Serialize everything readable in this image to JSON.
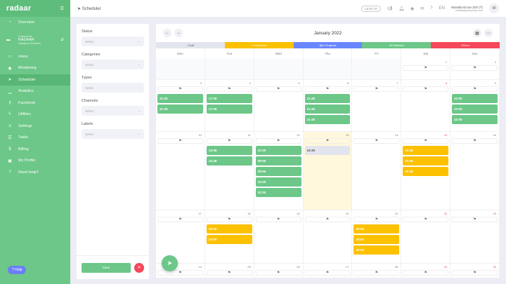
{
  "sidebar": {
    "brand": "radaar",
    "workspace": {
      "label": "Professional",
      "name": "RADAAR",
      "sub": "Instagram Scheduler"
    },
    "items": [
      {
        "label": "Overview",
        "icon": "dashboard-icon",
        "glyph": "◔"
      },
      {
        "label": "Inbox",
        "icon": "inbox-icon",
        "glyph": "▭"
      },
      {
        "label": "Monitoring",
        "icon": "eye-icon",
        "glyph": "◉"
      },
      {
        "label": "Scheduler",
        "icon": "paper-plane-icon",
        "glyph": "➤",
        "active": true
      },
      {
        "label": "Analytics",
        "icon": "chart-icon",
        "glyph": "▁"
      },
      {
        "label": "Facebook",
        "icon": "key-icon",
        "glyph": "⚷"
      },
      {
        "label": "Utilities",
        "icon": "bolt-icon",
        "glyph": "ϟ"
      },
      {
        "label": "Settings",
        "icon": "sliders-icon",
        "glyph": "≡"
      },
      {
        "label": "Tasks",
        "icon": "list-icon",
        "glyph": "☰"
      },
      {
        "label": "Billing",
        "icon": "dollar-icon",
        "glyph": "$"
      },
      {
        "label": "My Profile",
        "icon": "id-card-icon",
        "glyph": "▣"
      },
      {
        "label": "Need Help?",
        "icon": "question-icon",
        "glyph": "?"
      }
    ],
    "help_label": "Help"
  },
  "topbar": {
    "title": "Scheduler",
    "time": "16:00:10",
    "lang": "EN",
    "user_name": "Mustafa Ercan Zirh (T)",
    "user_email": "mustafa@policyman.com",
    "avatar": "M"
  },
  "filters": {
    "groups": [
      {
        "label": "Status",
        "placeholder": "Select"
      },
      {
        "label": "Categories",
        "placeholder": "Select"
      },
      {
        "label": "Types",
        "placeholder": "Select"
      },
      {
        "label": "Channels",
        "placeholder": "Select"
      },
      {
        "label": "Labels",
        "placeholder": "Select"
      }
    ],
    "save_label": "Save"
  },
  "calendar": {
    "month": "January 2022",
    "legend": [
      {
        "label": "Draft",
        "color": "#e3e5ee",
        "text": "#666",
        "glyph": "◌"
      },
      {
        "label": "Scheduled",
        "color": "#fcc100",
        "text": "#fff",
        "glyph": "✓"
      },
      {
        "label": "In Progress",
        "color": "#6887ff",
        "text": "#fff",
        "glyph": "◍"
      },
      {
        "label": "Published",
        "color": "#6cc788",
        "text": "#fff",
        "glyph": "➤"
      },
      {
        "label": "Error",
        "color": "#f5475a",
        "text": "#fff",
        "glyph": "✕"
      }
    ],
    "weekdays": [
      "Mon",
      "Tue",
      "Wed",
      "Thu",
      "Fri",
      "Sat",
      "Sun"
    ],
    "weeks": [
      [
        null,
        null,
        null,
        null,
        null,
        {
          "d": "1",
          "ev": []
        },
        {
          "d": "2",
          "ev": []
        }
      ],
      [
        {
          "d": "3",
          "ev": [
            [
              "21:28",
              "published"
            ],
            [
              "21:28",
              "published"
            ]
          ]
        },
        {
          "d": "4",
          "ev": [
            [
              "17:28",
              "published"
            ],
            [
              "17:28",
              "published"
            ]
          ]
        },
        {
          "d": "5",
          "ev": []
        },
        {
          "d": "6",
          "ev": [
            [
              "21:45",
              "published"
            ],
            [
              "21:45",
              "published"
            ],
            [
              "21:45",
              "published"
            ]
          ]
        },
        {
          "d": "7",
          "ev": []
        },
        {
          "d": "8",
          "ev": []
        },
        {
          "d": "9",
          "ev": [
            [
              "22:00",
              "published"
            ],
            [
              "22:00",
              "published"
            ],
            [
              "22:00",
              "published"
            ]
          ]
        }
      ],
      [
        {
          "d": "10",
          "ev": []
        },
        {
          "d": "11",
          "ev": [
            [
              "14:48",
              "published"
            ],
            [
              "14:48",
              "published"
            ]
          ]
        },
        {
          "d": "12",
          "ev": [
            [
              "22:30",
              "published"
            ],
            [
              "09:55",
              "published"
            ],
            [
              "09:55",
              "published"
            ],
            [
              "22:30",
              "published"
            ],
            [
              "22:30",
              "published"
            ]
          ]
        },
        {
          "d": "13",
          "today": true,
          "ev": [
            [
              "10:30",
              "draft"
            ]
          ]
        },
        {
          "d": "14",
          "ev": []
        },
        {
          "d": "15",
          "ev": [
            [
              "20:45",
              "scheduled"
            ],
            [
              "20:45",
              "scheduled"
            ],
            [
              "20:45",
              "scheduled"
            ]
          ]
        },
        {
          "d": "16",
          "ev": []
        }
      ],
      [
        {
          "d": "17",
          "ev": []
        },
        {
          "d": "18",
          "ev": [
            [
              "20:00",
              "scheduled"
            ],
            [
              "20:00",
              "scheduled"
            ]
          ]
        },
        {
          "d": "19",
          "ev": []
        },
        {
          "d": "20",
          "ev": []
        },
        {
          "d": "21",
          "ev": [
            [
              "20:00",
              "scheduled"
            ],
            [
              "20:00",
              "scheduled"
            ],
            [
              "20:00",
              "scheduled"
            ]
          ]
        },
        {
          "d": "22",
          "ev": []
        },
        {
          "d": "23",
          "ev": []
        }
      ],
      [
        {
          "d": "24",
          "ev": []
        },
        {
          "d": "25",
          "ev": []
        },
        {
          "d": "26",
          "ev": []
        },
        {
          "d": "27",
          "ev": []
        },
        {
          "d": "28",
          "ev": []
        },
        {
          "d": "29",
          "ev": []
        },
        {
          "d": "30",
          "ev": []
        }
      ]
    ]
  },
  "colors": {
    "published": "#6cc788",
    "scheduled": "#fcc100",
    "draft": "#e3e5ee",
    "accent": "#6cc788",
    "error": "#f5475a"
  }
}
